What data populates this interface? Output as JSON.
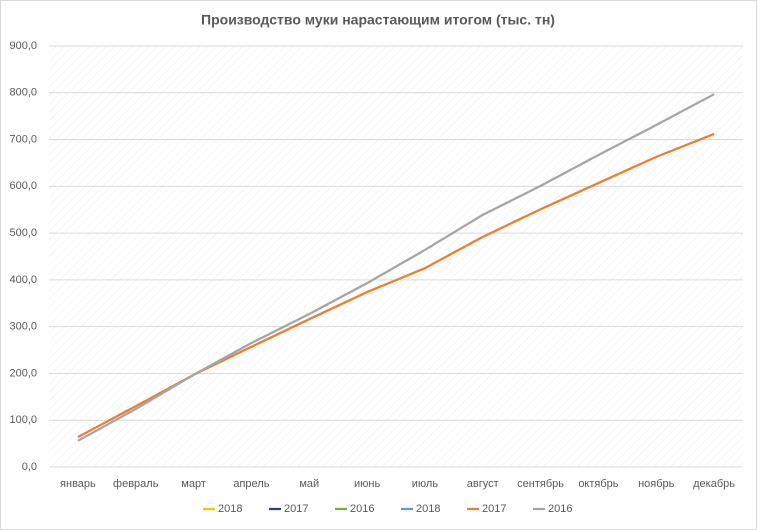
{
  "chart_data": {
    "type": "line",
    "title": "Производство муки нарастающим итогом (тыс. тн)",
    "categories": [
      "январь",
      "февраль",
      "март",
      "апрель",
      "май",
      "июнь",
      "июль",
      "август",
      "сентябрь",
      "октябрь",
      "ноябрь",
      "декабрь"
    ],
    "series": [
      {
        "name": "2018",
        "color": "#ffc000",
        "values": [
          null,
          null,
          null,
          null,
          null,
          null,
          null,
          null,
          null,
          null,
          null,
          null
        ]
      },
      {
        "name": "2017",
        "color": "#264478",
        "values": [
          null,
          null,
          null,
          null,
          null,
          null,
          null,
          null,
          null,
          null,
          null,
          null
        ]
      },
      {
        "name": "2016",
        "color": "#70ad47",
        "values": [
          null,
          null,
          null,
          null,
          null,
          null,
          null,
          null,
          null,
          null,
          null,
          null
        ]
      },
      {
        "name": "2018",
        "color": "#5b9bd5",
        "values": [
          null,
          null,
          null,
          null,
          null,
          null,
          null,
          null,
          null,
          null,
          null,
          null
        ]
      },
      {
        "name": "2017",
        "color": "#ed7d31",
        "values": [
          64,
          130,
          197,
          257,
          316,
          374,
          425,
          492,
          551,
          607,
          663,
          712
        ]
      },
      {
        "name": "2016",
        "color": "#a5a5a5",
        "values": [
          56,
          124,
          197,
          265,
          327,
          393,
          464,
          539,
          601,
          667,
          731,
          797
        ]
      }
    ],
    "ylim": [
      0,
      900
    ],
    "yticks": [
      {
        "value": 0,
        "label": "0,0"
      },
      {
        "value": 100,
        "label": "100,0"
      },
      {
        "value": 200,
        "label": "200,0"
      },
      {
        "value": 300,
        "label": "300,0"
      },
      {
        "value": 400,
        "label": "400,0"
      },
      {
        "value": 500,
        "label": "500,0"
      },
      {
        "value": 600,
        "label": "600,0"
      },
      {
        "value": 700,
        "label": "700,0"
      },
      {
        "value": 800,
        "label": "800,0"
      },
      {
        "value": 900,
        "label": "900,0"
      }
    ],
    "grid": true,
    "legend": "bottom"
  }
}
